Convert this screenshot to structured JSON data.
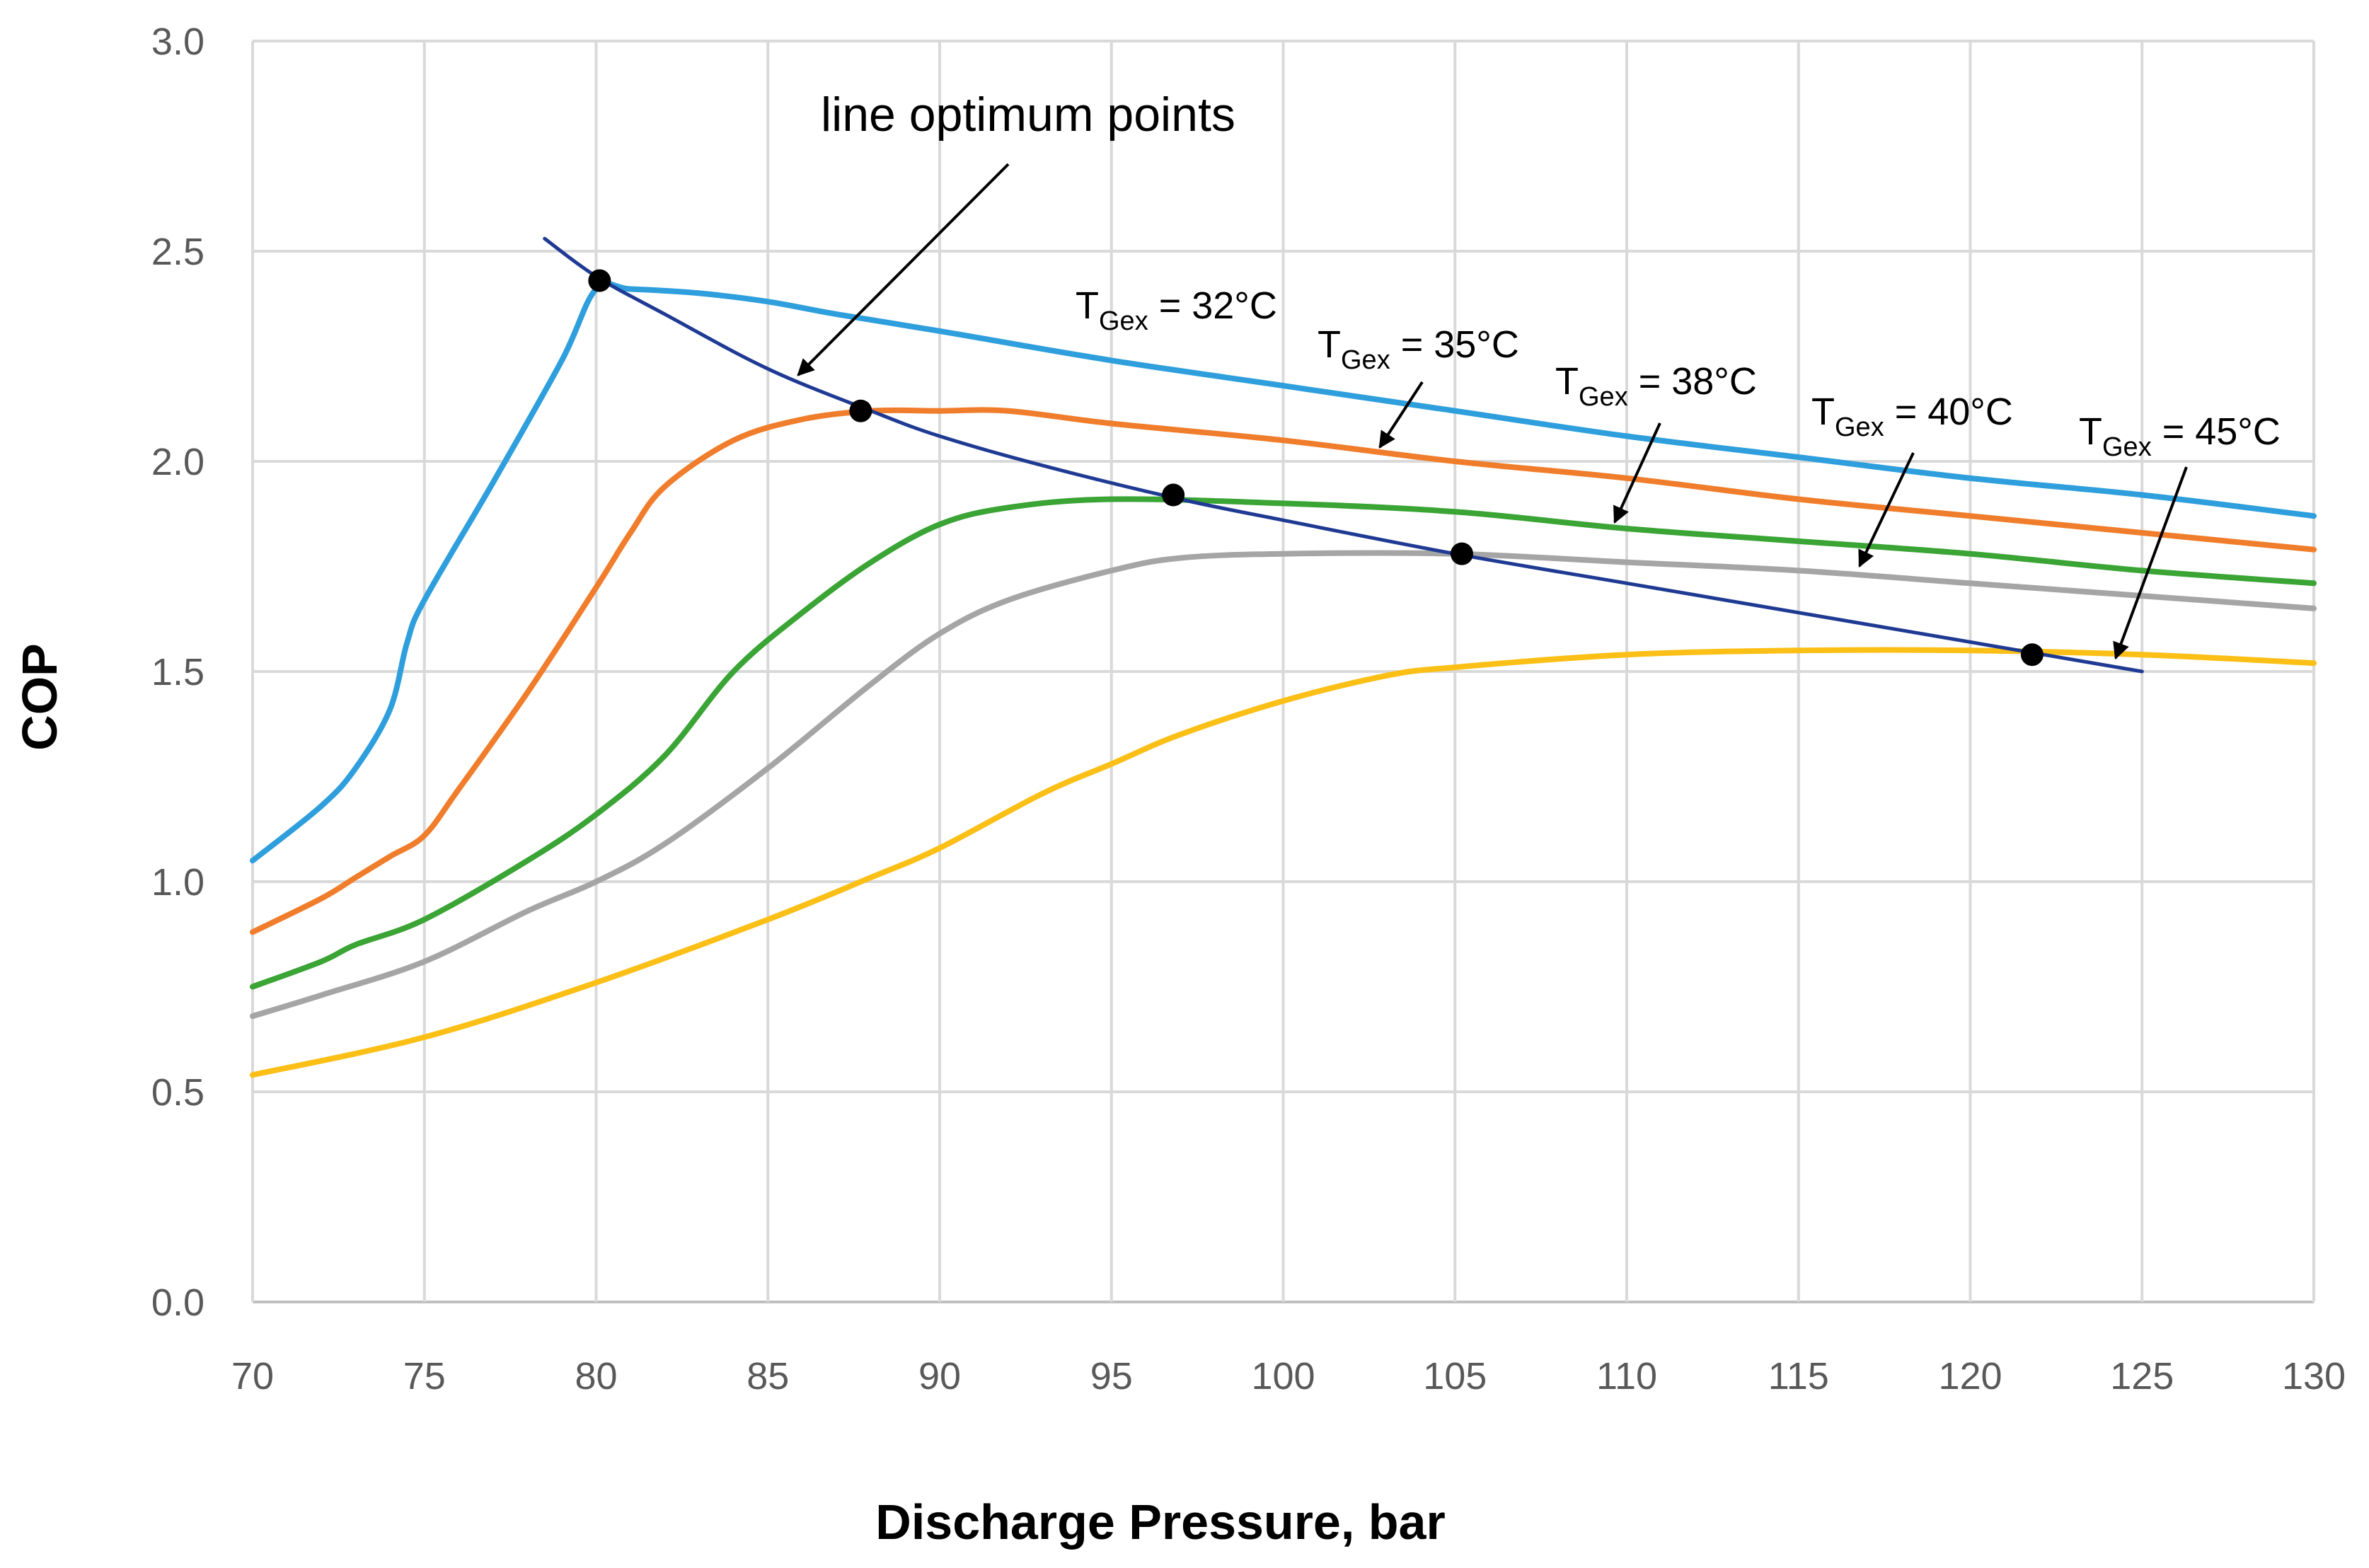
{
  "chart_data": {
    "type": "line",
    "xlabel": "Discharge Pressure, bar",
    "ylabel": "COP",
    "xlim": [
      70,
      130
    ],
    "ylim": [
      0,
      3
    ],
    "xticks": [
      70,
      75,
      80,
      85,
      90,
      95,
      100,
      105,
      110,
      115,
      120,
      125,
      130
    ],
    "yticks": [
      "0.0",
      "0.5",
      "1.0",
      "1.5",
      "2.0",
      "2.5",
      "3.0"
    ],
    "grid": true,
    "series": [
      {
        "name": "TGex = 32°C",
        "label_main": "T",
        "label_sub": "Gex",
        "label_rest": " = 32°C",
        "color": "#2e9fdc",
        "x": [
          70,
          72,
          73,
          74,
          74.5,
          75,
          77,
          79,
          80,
          81,
          83,
          85,
          87,
          90,
          95,
          100,
          105,
          110,
          115,
          120,
          125,
          130
        ],
        "y": [
          1.05,
          1.18,
          1.27,
          1.41,
          1.57,
          1.67,
          1.95,
          2.24,
          2.41,
          2.41,
          2.4,
          2.38,
          2.35,
          2.31,
          2.24,
          2.18,
          2.12,
          2.06,
          2.01,
          1.96,
          1.92,
          1.87
        ]
      },
      {
        "name": "TGex = 35°C",
        "label_main": "T",
        "label_sub": "Gex",
        "label_rest": " = 35°C",
        "color": "#f07d2b",
        "x": [
          70,
          72,
          73,
          74,
          75,
          76,
          78,
          80,
          81,
          82,
          84,
          86,
          88,
          90,
          92,
          95,
          100,
          105,
          110,
          115,
          120,
          125,
          130
        ],
        "y": [
          0.88,
          0.96,
          1.01,
          1.06,
          1.11,
          1.22,
          1.45,
          1.7,
          1.83,
          1.94,
          2.05,
          2.1,
          2.12,
          2.12,
          2.12,
          2.09,
          2.05,
          2.0,
          1.96,
          1.91,
          1.87,
          1.83,
          1.79
        ]
      },
      {
        "name": "TGex = 38°C",
        "label_main": "T",
        "label_sub": "Gex",
        "label_rest": " = 38°C",
        "color": "#3aa435",
        "x": [
          70,
          72,
          73,
          75,
          78,
          80,
          82,
          84,
          86,
          88,
          90,
          92,
          95,
          100,
          105,
          110,
          115,
          120,
          125,
          130
        ],
        "y": [
          0.75,
          0.81,
          0.85,
          0.91,
          1.05,
          1.16,
          1.3,
          1.5,
          1.64,
          1.76,
          1.85,
          1.89,
          1.91,
          1.9,
          1.88,
          1.84,
          1.81,
          1.78,
          1.74,
          1.71
        ]
      },
      {
        "name": "TGex = 40°C",
        "label_main": "T",
        "label_sub": "Gex",
        "label_rest": " = 40°C",
        "color": "#a5a5a5",
        "x": [
          70,
          72,
          75,
          78,
          80,
          82,
          85,
          88,
          90,
          92,
          95,
          97,
          100,
          105,
          110,
          115,
          120,
          125,
          130
        ],
        "y": [
          0.68,
          0.73,
          0.81,
          0.93,
          1.0,
          1.09,
          1.27,
          1.47,
          1.59,
          1.67,
          1.74,
          1.77,
          1.78,
          1.78,
          1.76,
          1.74,
          1.71,
          1.68,
          1.65
        ]
      },
      {
        "name": "TGex = 45°C",
        "label_main": "T",
        "label_sub": "Gex",
        "label_rest": " = 45°C",
        "color": "#fbbf16",
        "x": [
          70,
          75,
          80,
          85,
          88,
          90,
          93,
          95,
          97,
          100,
          103,
          105,
          110,
          115,
          120,
          125,
          130
        ],
        "y": [
          0.54,
          0.63,
          0.76,
          0.91,
          1.01,
          1.08,
          1.21,
          1.28,
          1.35,
          1.43,
          1.49,
          1.51,
          1.54,
          1.55,
          1.55,
          1.54,
          1.52
        ]
      }
    ],
    "optimum_line": {
      "color": "#1f3a93",
      "x": [
        78.5,
        80,
        82,
        85,
        88,
        90,
        93,
        97,
        100,
        105,
        110,
        115,
        120,
        125
      ],
      "y": [
        2.53,
        2.44,
        2.35,
        2.22,
        2.12,
        2.06,
        1.99,
        1.91,
        1.86,
        1.78,
        1.71,
        1.64,
        1.57,
        1.5
      ]
    },
    "optimum_points": [
      {
        "x": 80.1,
        "y": 2.43
      },
      {
        "x": 87.7,
        "y": 2.12
      },
      {
        "x": 96.8,
        "y": 1.92
      },
      {
        "x": 105.2,
        "y": 1.78
      },
      {
        "x": 121.8,
        "y": 1.54
      }
    ],
    "annotations": {
      "optimum_label": "line optimum points"
    }
  }
}
